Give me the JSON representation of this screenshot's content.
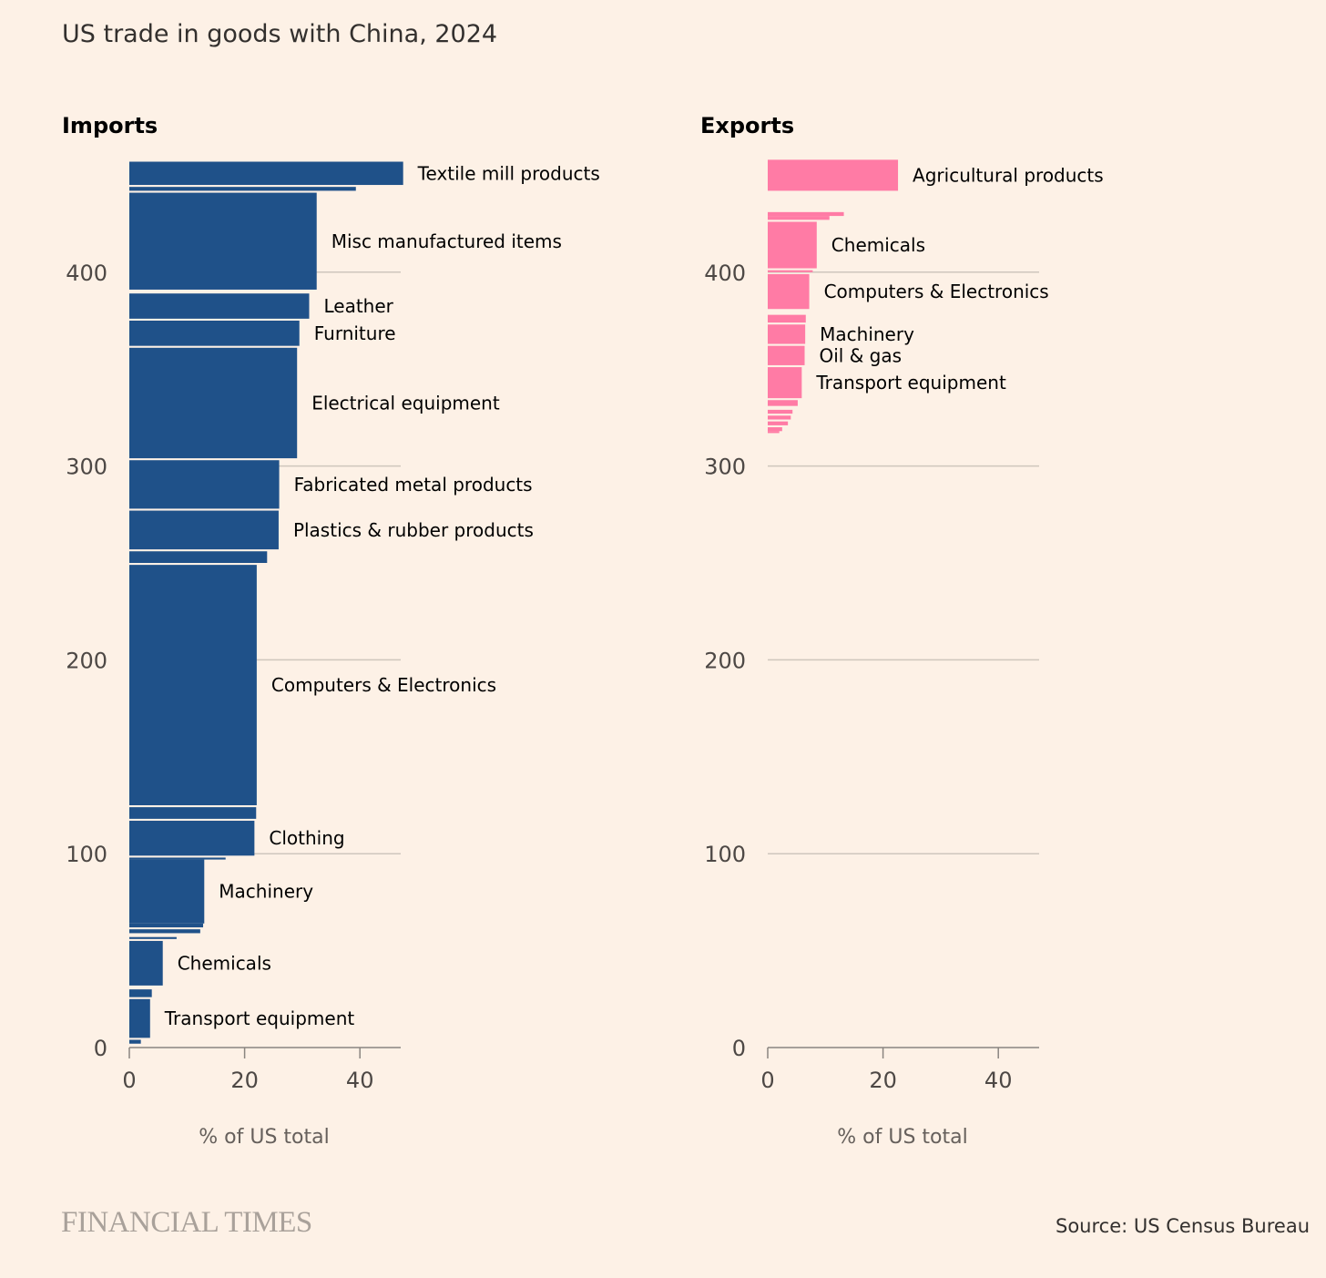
{
  "title": "US trade in goods with China, 2024",
  "source": "Source: US Census Bureau",
  "logo": "FINANCIAL TIMES",
  "colors": {
    "background": "#FDF1E6",
    "imports": "#1F5189",
    "exports": "#FF7BA5"
  },
  "chart_data": [
    {
      "type": "bar",
      "variant": "variable-width horizontal bars (cumulative stacked height)",
      "panel_title": "Imports",
      "xlabel": "% of US total",
      "xlim": [
        0,
        47
      ],
      "xticks": [
        0,
        20,
        40
      ],
      "ylim": [
        0,
        460
      ],
      "yticks": [
        0,
        100,
        200,
        300,
        400
      ],
      "grid": true,
      "color": "#1F5189",
      "bars": [
        {
          "label": "",
          "y0": 2,
          "y1": 4,
          "value": 2
        },
        {
          "label": "Transport equipment",
          "y0": 5,
          "y1": 25,
          "value": 3.6
        },
        {
          "label": "",
          "y0": 26,
          "y1": 30,
          "value": 3.9
        },
        {
          "label": "Chemicals",
          "y0": 32,
          "y1": 55,
          "value": 5.8
        },
        {
          "label": "",
          "y0": 56,
          "y1": 57,
          "value": 8.2
        },
        {
          "label": "",
          "y0": 59,
          "y1": 61,
          "value": 12.3
        },
        {
          "label": "",
          "y0": 62,
          "y1": 64,
          "value": 12.8
        },
        {
          "label": "Machinery",
          "y0": 64,
          "y1": 97,
          "value": 13
        },
        {
          "label": "",
          "y0": 97,
          "y1": 98,
          "value": 16.7
        },
        {
          "label": "Clothing",
          "y0": 99,
          "y1": 117,
          "value": 21.7
        },
        {
          "label": "",
          "y0": 118,
          "y1": 124,
          "value": 22
        },
        {
          "label": "Computers & Electronics",
          "y0": 125,
          "y1": 249,
          "value": 22.1
        },
        {
          "label": "",
          "y0": 250,
          "y1": 256,
          "value": 23.9
        },
        {
          "label": "Plastics & rubber products",
          "y0": 257,
          "y1": 277,
          "value": 25.9
        },
        {
          "label": "Fabricated metal products",
          "y0": 278,
          "y1": 303,
          "value": 26
        },
        {
          "label": "Electrical equipment",
          "y0": 304,
          "y1": 361,
          "value": 29.1
        },
        {
          "label": "Furniture",
          "y0": 362,
          "y1": 375,
          "value": 29.5
        },
        {
          "label": "Leather",
          "y0": 376,
          "y1": 389,
          "value": 31.2
        },
        {
          "label": "Misc manufactured items",
          "y0": 391,
          "y1": 441,
          "value": 32.5
        },
        {
          "label": "",
          "y0": 442,
          "y1": 444,
          "value": 39.3
        },
        {
          "label": "Textile mill products",
          "y0": 445,
          "y1": 457,
          "value": 47.5
        }
      ]
    },
    {
      "type": "bar",
      "variant": "variable-width horizontal bars (cumulative stacked height)",
      "panel_title": "Exports",
      "xlabel": "% of US total",
      "xlim": [
        0,
        47
      ],
      "xticks": [
        0,
        20,
        40
      ],
      "ylim": [
        0,
        460
      ],
      "yticks": [
        0,
        100,
        200,
        300,
        400
      ],
      "grid": true,
      "color": "#FF7BA5",
      "bars": [
        {
          "label": "",
          "y0": 317,
          "y1": 318,
          "value": 2
        },
        {
          "label": "",
          "y0": 318,
          "y1": 320,
          "value": 2.5
        },
        {
          "label": "",
          "y0": 321,
          "y1": 323,
          "value": 3.5
        },
        {
          "label": "",
          "y0": 324,
          "y1": 326,
          "value": 4
        },
        {
          "label": "",
          "y0": 327,
          "y1": 329,
          "value": 4.3
        },
        {
          "label": "",
          "y0": 331,
          "y1": 334,
          "value": 5.2
        },
        {
          "label": "Transport equipment",
          "y0": 335,
          "y1": 351,
          "value": 5.9
        },
        {
          "label": "Oil & gas",
          "y0": 352,
          "y1": 362,
          "value": 6.4
        },
        {
          "label": "Machinery",
          "y0": 363,
          "y1": 373,
          "value": 6.5
        },
        {
          "label": "",
          "y0": 374,
          "y1": 378,
          "value": 6.6
        },
        {
          "label": "Computers & Electronics",
          "y0": 381,
          "y1": 399,
          "value": 7.2
        },
        {
          "label": "",
          "y0": 400,
          "y1": 401,
          "value": 7.8
        },
        {
          "label": "Chemicals",
          "y0": 402,
          "y1": 426,
          "value": 8.5
        },
        {
          "label": "",
          "y0": 427,
          "y1": 429,
          "value": 10.7
        },
        {
          "label": "",
          "y0": 429,
          "y1": 431,
          "value": 13.2
        },
        {
          "label": "Agricultural products",
          "y0": 442,
          "y1": 458,
          "value": 22.6
        }
      ]
    }
  ]
}
